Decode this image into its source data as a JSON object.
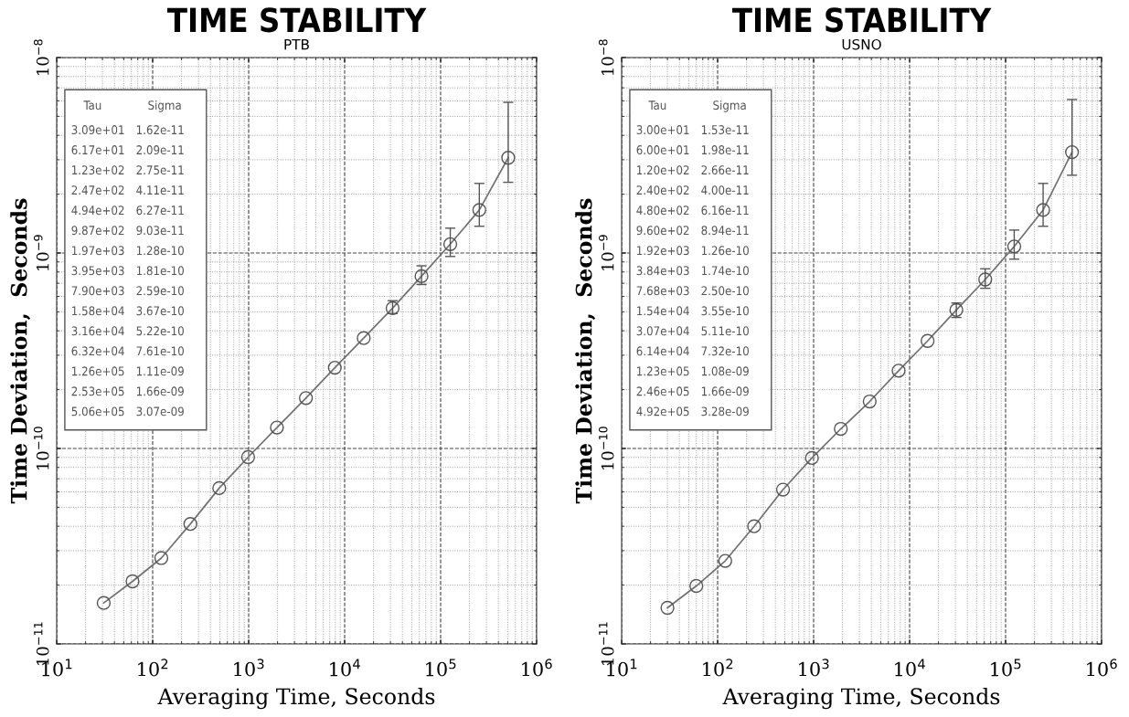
{
  "chart_data": [
    {
      "type": "line",
      "title": "TIME STABILITY",
      "subtitle": "PTB",
      "xlabel": "Averaging Time, Seconds",
      "ylabel": "Time Deviation,  Seconds",
      "log": "xy",
      "grid": true,
      "marker": "circle",
      "line_style": "solid",
      "annotations": [
        "Tau",
        "Sigma",
        "3.09e+01",
        "1.62e-11",
        "6.17e+01",
        "2.09e-11",
        "1.23e+02",
        "2.75e-11",
        "2.47e+02",
        "4.11e-11",
        "4.94e+02",
        "6.27e-11",
        "9.87e+02",
        "9.03e-11",
        "1.97e+03",
        "1.28e-10",
        "3.95e+03",
        "1.81e-10",
        "7.90e+03",
        "2.59e-10",
        "1.58e+04",
        "3.67e-10",
        "3.16e+04",
        "5.22e-10",
        "6.32e+04",
        "7.61e-10",
        "1.26e+05",
        "1.11e-09",
        "2.53e+05",
        "1.66e-09",
        "5.06e+05",
        "3.07e-09"
      ],
      "xlim": [
        10,
        1000000
      ],
      "xticks": [
        {
          "value": 10,
          "label": "10$^{1}$"
        },
        {
          "value": 100,
          "label": "10$^{2}$"
        },
        {
          "value": 1000,
          "label": "10$^{3}$"
        },
        {
          "value": 10000,
          "label": "10$^{4}$"
        },
        {
          "value": 100000,
          "label": "10$^{5}$"
        },
        {
          "value": 1000000,
          "label": "10$^{6}$"
        }
      ],
      "ylim": [
        1e-11,
        1e-08
      ],
      "yticks": [
        {
          "value": 1e-11,
          "label": "10$^{−11}$"
        },
        {
          "value": 1e-10,
          "label": "10$^{−10}$"
        },
        {
          "value": 1e-09,
          "label": "10$^{−9}$"
        },
        {
          "value": 1e-08,
          "label": "10$^{−8}$"
        }
      ],
      "x": [
        30.9,
        61.7,
        123,
        247,
        494,
        987,
        1970,
        3950,
        7900,
        15800,
        31600,
        63200,
        126000,
        253000,
        506000
      ],
      "series": [
        {
          "color": "#707070",
          "values": [
            1.62e-11,
            2.09e-11,
            2.75e-11,
            4.11e-11,
            6.27e-11,
            9.03e-11,
            1.28e-10,
            1.81e-10,
            2.59e-10,
            3.67e-10,
            5.22e-10,
            7.61e-10,
            1.11e-09,
            1.66e-09,
            3.07e-09
          ],
          "errors": [
            null,
            null,
            null,
            null,
            null,
            null,
            null,
            null,
            null,
            null,
            [
              4.9e-10,
              5.7e-10
            ],
            [
              6.9e-10,
              8.6e-10
            ],
            [
              9.6e-10,
              1.34e-09
            ],
            [
              1.37e-09,
              2.27e-09
            ],
            [
              2.3e-09,
              5.9e-09
            ]
          ]
        }
      ]
    },
    {
      "type": "line",
      "title": "TIME STABILITY",
      "subtitle": "USNO",
      "xlabel": "Averaging Time, Seconds",
      "ylabel": "Time Deviation,  Seconds",
      "log": "xy",
      "grid": true,
      "marker": "circle",
      "line_style": "solid",
      "annotations": [
        "Tau",
        "Sigma",
        "3.00e+01",
        "1.53e-11",
        "6.00e+01",
        "1.98e-11",
        "1.20e+02",
        "2.66e-11",
        "2.40e+02",
        "4.00e-11",
        "4.80e+02",
        "6.16e-11",
        "9.60e+02",
        "8.94e-11",
        "1.92e+03",
        "1.26e-10",
        "3.84e+03",
        "1.74e-10",
        "7.68e+03",
        "2.50e-10",
        "1.54e+04",
        "3.55e-10",
        "3.07e+04",
        "5.11e-10",
        "6.14e+04",
        "7.32e-10",
        "1.23e+05",
        "1.08e-09",
        "2.46e+05",
        "1.66e-09",
        "4.92e+05",
        "3.28e-09"
      ],
      "xlim": [
        10,
        1000000
      ],
      "xticks": [
        {
          "value": 10,
          "label": "10$^{1}$"
        },
        {
          "value": 100,
          "label": "10$^{2}$"
        },
        {
          "value": 1000,
          "label": "10$^{3}$"
        },
        {
          "value": 10000,
          "label": "10$^{4}$"
        },
        {
          "value": 100000,
          "label": "10$^{5}$"
        },
        {
          "value": 1000000,
          "label": "10$^{6}$"
        }
      ],
      "ylim": [
        1e-11,
        1e-08
      ],
      "yticks": [
        {
          "value": 1e-11,
          "label": "10$^{−11}$"
        },
        {
          "value": 1e-10,
          "label": "10$^{−10}$"
        },
        {
          "value": 1e-09,
          "label": "10$^{−9}$"
        },
        {
          "value": 1e-08,
          "label": "10$^{−8}$"
        }
      ],
      "x": [
        30.0,
        60.0,
        120,
        240,
        480,
        960,
        1920,
        3840,
        7680,
        15400,
        30700,
        61400,
        123000,
        246000,
        492000
      ],
      "series": [
        {
          "color": "#707070",
          "values": [
            1.53e-11,
            1.98e-11,
            2.66e-11,
            4e-11,
            6.16e-11,
            8.94e-11,
            1.26e-10,
            1.74e-10,
            2.5e-10,
            3.55e-10,
            5.11e-10,
            7.32e-10,
            1.08e-09,
            1.66e-09,
            3.28e-09
          ],
          "errors": [
            null,
            null,
            null,
            null,
            null,
            null,
            null,
            null,
            null,
            null,
            [
              4.68e-10,
              5.55e-10
            ],
            [
              6.6e-10,
              8.3e-10
            ],
            [
              9.3e-10,
              1.31e-09
            ],
            [
              1.37e-09,
              2.27e-09
            ],
            [
              2.5e-09,
              6.1e-09
            ]
          ]
        }
      ]
    }
  ]
}
